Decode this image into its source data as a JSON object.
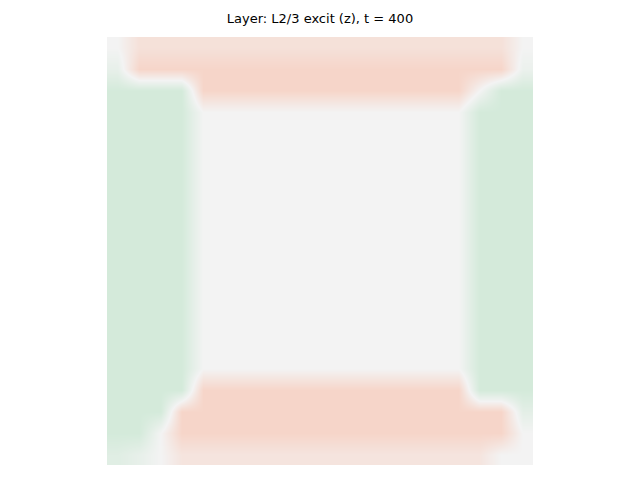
{
  "chart_data": {
    "type": "heatmap",
    "title": "Layer: L2/3 excit (z), t = 400",
    "cells": [
      [
        0,
        0.5,
        0.5,
        0.5,
        0.5,
        0.5,
        0.5,
        0.5,
        0.5,
        0.5,
        0.5,
        0.5,
        0.5,
        0.5,
        0.5,
        0.5,
        0.5,
        0.5,
        0.5,
        0
      ],
      [
        -0.3,
        0.8,
        0.8,
        0.8,
        0.8,
        0.8,
        0.8,
        0.8,
        0.8,
        0.8,
        0.8,
        0.8,
        0.8,
        0.8,
        0.8,
        0.8,
        0.8,
        0.8,
        0.8,
        -0.2
      ],
      [
        -0.8,
        -0.8,
        -0.8,
        -0.8,
        0.8,
        0.8,
        0.8,
        0.8,
        0.8,
        0.8,
        0.8,
        0.8,
        0.8,
        0.8,
        0.8,
        0.8,
        0.8,
        0,
        -0.8,
        -0.8
      ],
      [
        -0.8,
        -0.8,
        -0.8,
        -0.8,
        0,
        0,
        0,
        0,
        0,
        0,
        0,
        0,
        0,
        0,
        0,
        0,
        0,
        -0.8,
        -0.8,
        -0.8
      ],
      [
        -0.8,
        -0.8,
        -0.8,
        -0.8,
        0,
        0,
        0,
        0,
        0,
        0,
        0,
        0,
        0,
        0,
        0,
        0,
        0,
        -0.8,
        -0.8,
        -0.8
      ],
      [
        -0.8,
        -0.8,
        -0.8,
        -0.8,
        0,
        0,
        0,
        0,
        0,
        0,
        0,
        0,
        0,
        0,
        0,
        0,
        0,
        -0.8,
        -0.8,
        -0.8
      ],
      [
        -0.8,
        -0.8,
        -0.8,
        -0.8,
        0,
        0,
        0,
        0,
        0,
        0,
        0,
        0,
        0,
        0,
        0,
        0,
        0,
        -0.8,
        -0.8,
        -0.8
      ],
      [
        -0.8,
        -0.8,
        -0.8,
        -0.8,
        0,
        0,
        0,
        0,
        0,
        0,
        0,
        0,
        0,
        0,
        0,
        0,
        0,
        -0.8,
        -0.8,
        -0.8
      ],
      [
        -0.8,
        -0.8,
        -0.8,
        -0.8,
        0,
        0,
        0,
        0,
        0,
        0,
        0,
        0,
        0,
        0,
        0,
        0,
        0,
        -0.8,
        -0.8,
        -0.8
      ],
      [
        -0.8,
        -0.8,
        -0.8,
        -0.8,
        0,
        0,
        0,
        0,
        0,
        0,
        0,
        0,
        0,
        0,
        0,
        0,
        0,
        -0.8,
        -0.8,
        -0.8
      ],
      [
        -0.8,
        -0.8,
        -0.8,
        -0.8,
        0,
        0,
        0,
        0,
        0,
        0,
        0,
        0,
        0,
        0,
        0,
        0,
        0,
        -0.8,
        -0.8,
        -0.8
      ],
      [
        -0.8,
        -0.8,
        -0.8,
        -0.8,
        0,
        0,
        0,
        0,
        0,
        0,
        0,
        0,
        0,
        0,
        0,
        0,
        0,
        -0.8,
        -0.8,
        -0.8
      ],
      [
        -0.8,
        -0.8,
        -0.8,
        -0.8,
        0,
        0,
        0,
        0,
        0,
        0,
        0,
        0,
        0,
        0,
        0,
        0,
        0,
        -0.8,
        -0.8,
        -0.8
      ],
      [
        -0.8,
        -0.8,
        -0.8,
        -0.8,
        0,
        0,
        0,
        0,
        0,
        0,
        0,
        0,
        0,
        0,
        0,
        0,
        0,
        -0.8,
        -0.8,
        -0.8
      ],
      [
        -0.8,
        -0.8,
        -0.8,
        -0.8,
        0,
        0,
        0,
        0,
        0,
        0,
        0,
        0,
        0,
        0,
        0,
        0,
        0,
        -0.8,
        -0.8,
        -0.8
      ],
      [
        -0.8,
        -0.8,
        -0.8,
        -0.8,
        0,
        0,
        0,
        0,
        0,
        0,
        0,
        0,
        0,
        0,
        0,
        0,
        0,
        -0.8,
        -0.8,
        -0.8
      ],
      [
        -0.8,
        -0.8,
        -0.8,
        -0.8,
        0.8,
        0.8,
        0.8,
        0.8,
        0.8,
        0.8,
        0.8,
        0.8,
        0.8,
        0.8,
        0.8,
        0.8,
        0.8,
        -0.8,
        -0.8,
        -0.8
      ],
      [
        -0.8,
        -0.8,
        -0.8,
        0.8,
        0.8,
        0.8,
        0.8,
        0.8,
        0.8,
        0.8,
        0.8,
        0.8,
        0.8,
        0.8,
        0.8,
        0.8,
        0.8,
        0.8,
        0.8,
        -0.4
      ],
      [
        -0.8,
        -0.8,
        0,
        0.8,
        0.8,
        0.8,
        0.8,
        0.8,
        0.8,
        0.8,
        0.8,
        0.8,
        0.8,
        0.8,
        0.8,
        0.8,
        0.8,
        0.8,
        0.8,
        0
      ],
      [
        -0.5,
        -0.3,
        0,
        0.4,
        0.4,
        0.4,
        0.4,
        0.4,
        0.4,
        0.4,
        0.4,
        0.4,
        0.4,
        0.4,
        0.4,
        0.4,
        0.4,
        0.4,
        0,
        0
      ]
    ],
    "zlim": [
      -1,
      1
    ],
    "tick_labels": false
  }
}
